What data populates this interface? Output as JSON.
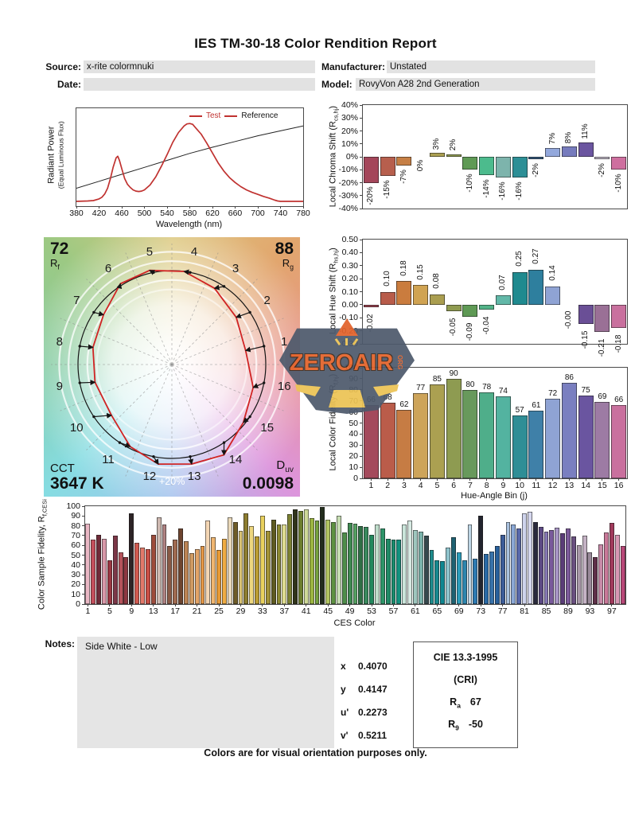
{
  "report": {
    "title": "IES TM-30-18 Color Rendition Report",
    "source_label": "Source:",
    "source_value": "x-rite colormnuki",
    "date_label": "Date:",
    "date_value": "",
    "manufacturer_label": "Manufacturer:",
    "manufacturer_value": "Unstated",
    "model_label": "Model:",
    "model_value": "RovyVon A28 2nd Generation",
    "notes_label": "Notes:",
    "notes_value": "Side White - Low",
    "footer": "Colors are for visual orientation purposes only.",
    "chromaticity": [
      {
        "label": "x",
        "value": "0.4070"
      },
      {
        "label": "y",
        "value": "0.4147"
      },
      {
        "label": "u'",
        "value": "0.2273"
      },
      {
        "label": "v'",
        "value": "0.5211"
      }
    ],
    "cri": {
      "title": "CIE 13.3-1995",
      "subtitle": "(CRI)",
      "ra_base": "R",
      "ra_sub": "a",
      "ra_value": "67",
      "r9_base": "R",
      "r9_sub": "9",
      "r9_value": "-50"
    }
  },
  "watermark": {
    "text": "ZEROAIR",
    "suffix": "ORG"
  },
  "cvg": {
    "rf_value": "72",
    "rf_base": "R",
    "rf_sub": "f",
    "rg_value": "88",
    "rg_base": "R",
    "rg_sub": "g",
    "cct_label": "CCT",
    "cct_value": "3647 K",
    "duv_base": "D",
    "duv_sub": "uv",
    "duv_value": "0.0098",
    "ring_label": "+20%",
    "bin_labels": [
      "1",
      "2",
      "3",
      "4",
      "5",
      "6",
      "7",
      "8",
      "9",
      "10",
      "11",
      "12",
      "13",
      "14",
      "15",
      "16"
    ],
    "reference_color": "#151515",
    "test_color": "#d02323"
  },
  "chart_data": [
    {
      "id": "spd",
      "type": "line",
      "xlabel": "Wavelength (nm)",
      "ylabel_line1": "Radiant Power",
      "ylabel_line2": "(Equal Luminous Flux)",
      "xlim": [
        380,
        780
      ],
      "xticks": [
        380,
        420,
        460,
        500,
        540,
        580,
        620,
        660,
        700,
        740,
        780
      ],
      "series": [
        {
          "name": "Test",
          "color": "#c03230",
          "x": [
            380,
            400,
            410,
            420,
            425,
            430,
            435,
            440,
            445,
            450,
            453,
            456,
            460,
            465,
            470,
            475,
            480,
            485,
            490,
            495,
            500,
            510,
            520,
            530,
            540,
            550,
            560,
            570,
            575,
            580,
            585,
            590,
            600,
            610,
            620,
            630,
            640,
            650,
            660,
            670,
            680,
            690,
            700,
            710,
            720,
            730,
            735,
            740,
            780
          ],
          "y": [
            0,
            0.005,
            0.01,
            0.03,
            0.05,
            0.09,
            0.16,
            0.28,
            0.42,
            0.53,
            0.55,
            0.5,
            0.4,
            0.28,
            0.21,
            0.17,
            0.14,
            0.125,
            0.12,
            0.125,
            0.14,
            0.2,
            0.3,
            0.43,
            0.57,
            0.72,
            0.84,
            0.92,
            0.945,
            0.95,
            0.94,
            0.9,
            0.82,
            0.71,
            0.59,
            0.47,
            0.37,
            0.29,
            0.23,
            0.18,
            0.14,
            0.11,
            0.085,
            0.06,
            0.04,
            0.015,
            0.005,
            0,
            0
          ]
        },
        {
          "name": "Reference",
          "color": "#222222",
          "x": [
            380,
            420,
            460,
            500,
            540,
            580,
            620,
            660,
            700,
            740,
            780
          ],
          "y": [
            0.16,
            0.245,
            0.33,
            0.415,
            0.5,
            0.585,
            0.66,
            0.73,
            0.8,
            0.86,
            0.92
          ]
        }
      ]
    },
    {
      "id": "chroma_shift",
      "type": "bar",
      "ylabel_pre": "Local Chroma Shift (R",
      "ylabel_sub": "cs,hj",
      "ylabel_post": ")",
      "ylim": [
        -40,
        40
      ],
      "yticks": [
        40,
        30,
        20,
        10,
        0,
        -10,
        -20,
        -30,
        -40
      ],
      "ytick_labels": [
        "40%",
        "30%",
        "20%",
        "10%",
        "0%",
        "-10%",
        "-20%",
        "-30%",
        "-40%"
      ],
      "categories": [
        1,
        2,
        3,
        4,
        5,
        6,
        7,
        8,
        9,
        10,
        11,
        12,
        13,
        14,
        15,
        16
      ],
      "values": [
        -20,
        -15,
        -7,
        0,
        3,
        2,
        -10,
        -14,
        -16,
        -16,
        -2,
        7,
        8,
        11,
        -2,
        -10
      ],
      "bar_labels": [
        "-20%",
        "-15%",
        "-7%",
        "0%",
        "3%",
        "2%",
        "-10%",
        "-14%",
        "-16%",
        "-16%",
        "-2%",
        "7%",
        "8%",
        "11%",
        "-2%",
        "-10%"
      ],
      "colors": [
        "#a4465a",
        "#b75f4d",
        "#c67f45",
        "#cda45a",
        "#aba051",
        "#8f9b50",
        "#5f9a55",
        "#4cbb8d",
        "#7db4ac",
        "#2d8f96",
        "#32597e",
        "#93a8dc",
        "#767bbd",
        "#6b55a0",
        "#c2bac8",
        "#ce6f9f"
      ]
    },
    {
      "id": "hue_shift",
      "type": "bar",
      "ylabel_pre": "Local Hue Shift (R",
      "ylabel_sub": "hs,hj",
      "ylabel_post": ")",
      "ylim": [
        -0.3,
        0.5
      ],
      "yticks": [
        0.5,
        0.4,
        0.3,
        0.2,
        0.1,
        0.0,
        -0.1,
        -0.2,
        -0.3
      ],
      "ytick_labels": [
        "0.50",
        "0.40",
        "0.30",
        "0.20",
        "0.10",
        "0.00",
        "-0.10",
        "-0.20",
        "-0.30"
      ],
      "categories": [
        1,
        2,
        3,
        4,
        5,
        6,
        7,
        8,
        9,
        10,
        11,
        12,
        13,
        14,
        15,
        16
      ],
      "values": [
        -0.02,
        0.1,
        0.18,
        0.15,
        0.08,
        -0.05,
        -0.09,
        -0.04,
        0.07,
        0.25,
        0.27,
        0.14,
        0,
        -0.15,
        -0.21,
        -0.18
      ],
      "bar_labels": [
        "-0.02",
        "0.10",
        "0.18",
        "0.15",
        "0.08",
        "-0.05",
        "-0.09",
        "-0.04",
        "0.07",
        "0.25",
        "0.27",
        "0.14",
        "-0.00",
        "-0.15",
        "-0.21",
        "-0.18"
      ],
      "colors": [
        "#9c4250",
        "#b85c4a",
        "#ca7c3e",
        "#d0a352",
        "#aa9e50",
        "#8f9b50",
        "#5f9a55",
        "#52b388",
        "#62b8a8",
        "#1f8a8f",
        "#2e7f9e",
        "#8fa3d4",
        "#7a7fc0",
        "#6a4f96",
        "#9a7096",
        "#c9709e"
      ]
    },
    {
      "id": "local_color_fidelity",
      "type": "bar",
      "ylabel_pre": "Local Color Fidelity (R",
      "ylabel_sub": "f,hj",
      "ylabel_post": ")",
      "xlabel": "Hue-Angle Bin (j)",
      "ylim": [
        0,
        100
      ],
      "yticks": [
        100,
        90,
        80,
        70,
        60,
        50,
        40,
        30,
        20,
        10,
        0
      ],
      "ytick_labels": [
        "100",
        "90",
        "80",
        "70",
        "60",
        "50",
        "40",
        "30",
        "20",
        "10",
        "0"
      ],
      "categories": [
        "1",
        "2",
        "3",
        "4",
        "5",
        "6",
        "7",
        "8",
        "9",
        "10",
        "11",
        "12",
        "13",
        "14",
        "15",
        "16"
      ],
      "values": [
        66,
        68,
        62,
        77,
        85,
        90,
        80,
        78,
        74,
        57,
        61,
        72,
        86,
        75,
        69,
        66
      ],
      "bar_labels": [
        "66",
        "68",
        "62",
        "77",
        "85",
        "90",
        "80",
        "78",
        "74",
        "57",
        "61",
        "72",
        "86",
        "75",
        "69",
        "66"
      ],
      "colors": [
        "#a44a5c",
        "#ba5c4a",
        "#c67c44",
        "#cda45a",
        "#aba051",
        "#8e9b51",
        "#68995c",
        "#4fae8a",
        "#53b3a0",
        "#2f8e96",
        "#3f80a8",
        "#8fa3d4",
        "#7a7fc0",
        "#6a55a0",
        "#9d7ba4",
        "#c9709e"
      ]
    },
    {
      "id": "ces_fidelity",
      "type": "bar",
      "ylabel_pre": "Color Sample Fidelity, R",
      "ylabel_sub": "f,CESi",
      "ylabel_post": "",
      "xlabel": "CES Color",
      "ylim": [
        0,
        100
      ],
      "yticks": [
        100,
        90,
        80,
        70,
        60,
        50,
        40,
        30,
        20,
        10,
        0
      ],
      "ytick_labels": [
        "100",
        "90",
        "80",
        "70",
        "60",
        "50",
        "40",
        "30",
        "20",
        "10",
        "0"
      ],
      "xticks": [
        1,
        5,
        9,
        13,
        17,
        21,
        25,
        29,
        33,
        37,
        41,
        45,
        49,
        53,
        57,
        61,
        65,
        69,
        73,
        77,
        81,
        85,
        89,
        93,
        97
      ],
      "values": [
        82,
        66,
        71,
        67,
        45,
        70,
        53,
        48,
        93,
        63,
        58,
        56,
        71,
        89,
        81,
        59,
        66,
        77,
        64,
        52,
        56,
        59,
        85,
        68,
        55,
        67,
        89,
        84,
        75,
        93,
        80,
        69,
        90,
        75,
        86,
        81,
        81,
        92,
        97,
        95,
        97,
        88,
        85,
        99,
        86,
        84,
        90,
        73,
        83,
        82,
        80,
        79,
        71,
        81,
        77,
        67,
        66,
        66,
        81,
        85,
        76,
        74,
        70,
        55,
        45,
        44,
        58,
        68,
        53,
        45,
        81,
        46,
        90,
        51,
        54,
        59,
        71,
        84,
        81,
        77,
        93,
        94,
        84,
        79,
        74,
        76,
        78,
        72,
        77,
        69,
        60,
        70,
        53,
        48,
        61,
        73,
        83,
        71,
        59
      ],
      "colors": [
        "#e9b7c4",
        "#c44f5c",
        "#6f2b38",
        "#d898a8",
        "#9c3843",
        "#7c3748",
        "#b5525a",
        "#8c3640",
        "#2d2426",
        "#d05a50",
        "#e2796a",
        "#c94f46",
        "#9e4c3c",
        "#cdb8b0",
        "#b08282",
        "#8a5a46",
        "#a06a50",
        "#6e452f",
        "#bc8455",
        "#d09a62",
        "#e3a468",
        "#e59747",
        "#f4d6b4",
        "#f0b671",
        "#e79934",
        "#efac42",
        "#ead9ba",
        "#6f5c28",
        "#d9c273",
        "#8d7d30",
        "#eed77e",
        "#ba9c32",
        "#e9d15e",
        "#a29238",
        "#5e5a20",
        "#8d8b32",
        "#dedc90",
        "#7c8232",
        "#30341a",
        "#6c7e2e",
        "#ced998",
        "#9cb542",
        "#76a23e",
        "#232d1d",
        "#b2c562",
        "#5e9242",
        "#c6ddb2",
        "#4e8e4a",
        "#408a52",
        "#56a262",
        "#307046",
        "#3a8a5e",
        "#22895e",
        "#bedcca",
        "#2e9569",
        "#208a66",
        "#198c6e",
        "#12917e",
        "#cae5da",
        "#d6e9e2",
        "#9ec6be",
        "#7ab2aa",
        "#36494e",
        "#1f8d8e",
        "#17888e",
        "#0f8791",
        "#8fc3cc",
        "#1f6272",
        "#2b9cba",
        "#2e86ae",
        "#bed6e6",
        "#2d7ab2",
        "#23252e",
        "#2a6aa6",
        "#3872aa",
        "#28609c",
        "#3c5c98",
        "#a9c1de",
        "#8ba8d6",
        "#5868aa",
        "#ced3ec",
        "#d5d7ee",
        "#2b2b3d",
        "#5c4a84",
        "#8678b4",
        "#7a5a9c",
        "#a794c4",
        "#5a3c78",
        "#7c5a9a",
        "#6a5080",
        "#a898a8",
        "#c4b2c4",
        "#9a8a9a",
        "#5e3048",
        "#c88aa8",
        "#c87898",
        "#a13a5c",
        "#d898b4",
        "#b84878"
      ]
    }
  ]
}
